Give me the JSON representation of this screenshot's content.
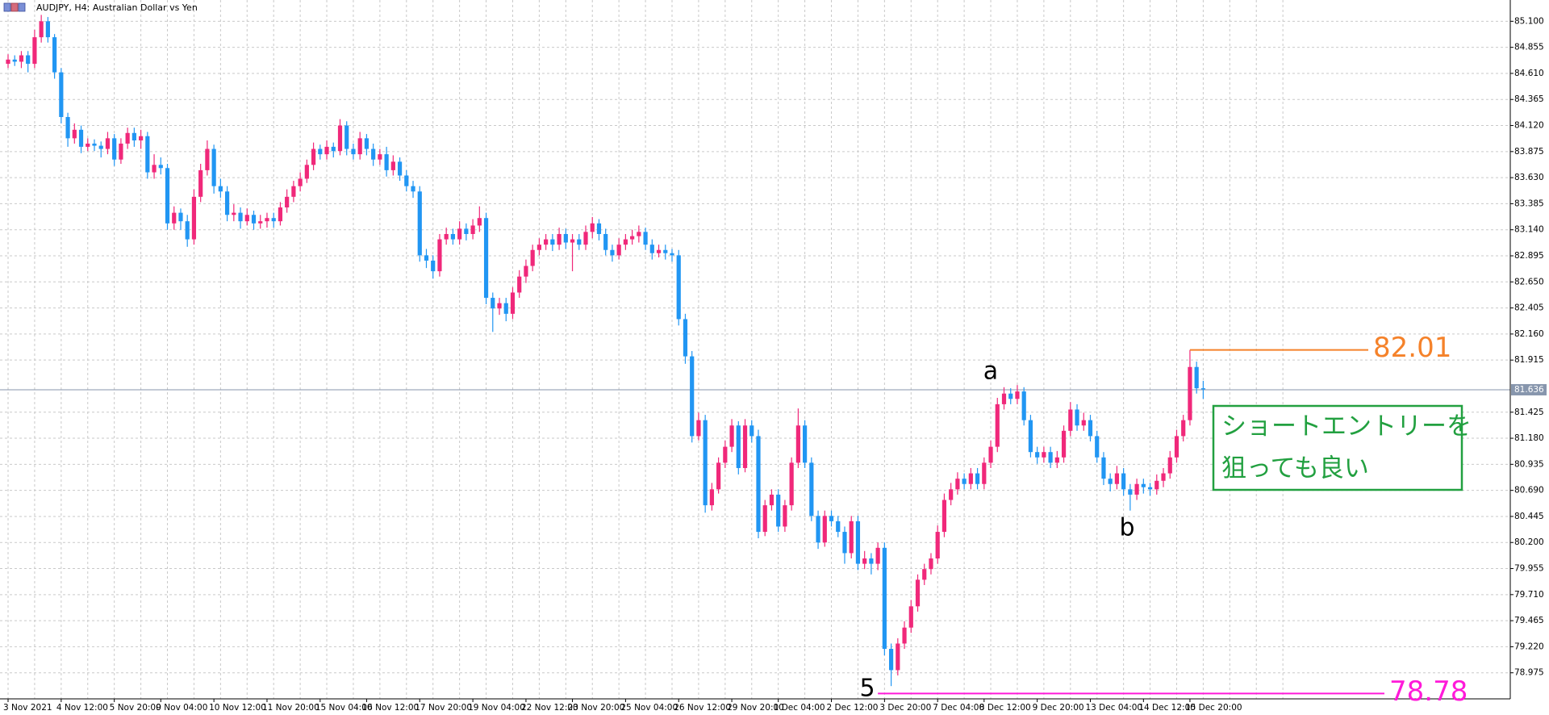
{
  "chart_data": {
    "type": "candlestick",
    "title": "AUDJPY, H4:  Australian Dollar vs Yen",
    "up_color": "#f0287a",
    "down_color": "#2196f3",
    "grid": true,
    "ylim": [
      78.73,
      85.3
    ],
    "yticks": [
      {
        "value": 85.1,
        "label": "85.100"
      },
      84.855,
      {
        "value": 84.61,
        "label": "84.610"
      },
      84.365,
      {
        "value": 84.12,
        "label": "84.120"
      },
      83.875,
      {
        "value": 83.63,
        "label": "83.630"
      },
      83.385,
      {
        "value": 83.14,
        "label": "83.140"
      },
      82.895,
      {
        "value": 82.65,
        "label": "82.650"
      },
      82.405,
      {
        "value": 82.16,
        "label": "82.160"
      },
      81.915,
      81.425,
      {
        "value": 81.18,
        "label": "81.180"
      },
      80.935,
      {
        "value": 80.69,
        "label": "80.690"
      },
      80.445,
      {
        "value": 80.2,
        "label": "80.200"
      },
      79.955,
      {
        "value": 79.71,
        "label": "79.710"
      },
      79.465,
      {
        "value": 79.22,
        "label": "79.220"
      },
      78.975
    ],
    "current_price": 81.636,
    "categories": [
      "3 Nov 2021",
      null,
      null,
      null,
      null,
      null,
      null,
      null,
      "4 Nov 12:00",
      null,
      null,
      null,
      null,
      null,
      null,
      null,
      "5 Nov 20:00",
      null,
      null,
      null,
      null,
      null,
      null,
      "9 Nov 04:00",
      null,
      null,
      null,
      null,
      null,
      null,
      null,
      "10 Nov 12:00",
      null,
      null,
      null,
      null,
      null,
      null,
      null,
      "11 Nov 20:00",
      null,
      null,
      null,
      null,
      null,
      null,
      null,
      "15 Nov 04:00",
      null,
      null,
      null,
      null,
      null,
      null,
      "16 Nov 12:00",
      null,
      null,
      null,
      null,
      null,
      null,
      null,
      "17 Nov 20:00",
      null,
      null,
      null,
      null,
      null,
      null,
      null,
      "19 Nov 04:00",
      null,
      null,
      null,
      null,
      null,
      null,
      null,
      "22 Nov 12:00",
      null,
      null,
      null,
      null,
      null,
      null,
      "23 Nov 20:00",
      null,
      null,
      null,
      null,
      null,
      null,
      null,
      "25 Nov 04:00",
      null,
      null,
      null,
      null,
      null,
      null,
      null,
      "26 Nov 12:00",
      null,
      null,
      null,
      null,
      null,
      null,
      null,
      "29 Nov 20:00",
      null,
      null,
      null,
      null,
      null,
      null,
      "1 Dec 04:00",
      null,
      null,
      null,
      null,
      null,
      null,
      null,
      "2 Dec 12:00",
      null,
      null,
      null,
      null,
      null,
      null,
      null,
      "3 Dec 20:00",
      null,
      null,
      null,
      null,
      null,
      null,
      null,
      "7 Dec 04:00",
      null,
      null,
      null,
      null,
      null,
      null,
      "8 Dec 12:00",
      null,
      null,
      null,
      null,
      null,
      null,
      null,
      "9 Dec 20:00",
      null,
      null,
      null,
      null,
      null,
      null,
      null,
      "13 Dec 04:00",
      null,
      null,
      null,
      null,
      null,
      null,
      null,
      "14 Dec 12:00",
      null,
      null,
      null,
      null,
      null,
      null,
      "15 Dec 20:00",
      null,
      null
    ],
    "ohlc": [
      [
        84.7,
        84.79,
        84.66,
        84.74
      ],
      [
        84.74,
        84.78,
        84.68,
        84.72
      ],
      [
        84.72,
        84.82,
        84.66,
        84.78
      ],
      [
        84.78,
        84.82,
        84.62,
        84.7
      ],
      [
        84.7,
        85.02,
        84.66,
        84.95
      ],
      [
        84.95,
        85.16,
        84.9,
        85.1
      ],
      [
        85.1,
        85.14,
        84.9,
        84.95
      ],
      [
        84.95,
        84.98,
        84.56,
        84.62
      ],
      [
        84.62,
        84.66,
        84.14,
        84.2
      ],
      [
        84.2,
        84.24,
        83.92,
        84.0
      ],
      [
        84.0,
        84.14,
        83.95,
        84.08
      ],
      [
        84.08,
        84.12,
        83.86,
        83.92
      ],
      [
        83.92,
        84.0,
        83.88,
        83.95
      ],
      [
        83.95,
        83.99,
        83.88,
        83.93
      ],
      [
        83.93,
        83.97,
        83.82,
        83.9
      ],
      [
        83.9,
        84.06,
        83.85,
        84.0
      ],
      [
        84.0,
        84.04,
        83.74,
        83.8
      ],
      [
        83.8,
        84.0,
        83.76,
        83.95
      ],
      [
        83.95,
        84.1,
        83.9,
        84.05
      ],
      [
        84.05,
        84.1,
        83.92,
        83.98
      ],
      [
        83.98,
        84.08,
        83.9,
        84.02
      ],
      [
        84.02,
        84.06,
        83.62,
        83.68
      ],
      [
        83.68,
        83.85,
        83.62,
        83.75
      ],
      [
        83.75,
        83.82,
        83.66,
        83.72
      ],
      [
        83.72,
        83.76,
        83.14,
        83.2
      ],
      [
        83.2,
        83.36,
        83.14,
        83.3
      ],
      [
        83.3,
        83.34,
        83.14,
        83.22
      ],
      [
        83.22,
        83.28,
        82.98,
        83.05
      ],
      [
        83.05,
        83.52,
        83.0,
        83.45
      ],
      [
        83.45,
        83.76,
        83.4,
        83.7
      ],
      [
        83.7,
        83.98,
        83.65,
        83.9
      ],
      [
        83.9,
        83.94,
        83.48,
        83.55
      ],
      [
        83.55,
        83.62,
        83.44,
        83.5
      ],
      [
        83.5,
        83.55,
        83.22,
        83.28
      ],
      [
        83.28,
        83.38,
        83.22,
        83.3
      ],
      [
        83.3,
        83.35,
        83.15,
        83.22
      ],
      [
        83.22,
        83.34,
        83.18,
        83.28
      ],
      [
        83.28,
        83.32,
        83.14,
        83.2
      ],
      [
        83.2,
        83.28,
        83.15,
        83.22
      ],
      [
        83.22,
        83.3,
        83.16,
        83.25
      ],
      [
        83.25,
        83.3,
        83.16,
        83.22
      ],
      [
        83.22,
        83.4,
        83.18,
        83.35
      ],
      [
        83.35,
        83.52,
        83.3,
        83.45
      ],
      [
        83.45,
        83.6,
        83.4,
        83.55
      ],
      [
        83.55,
        83.68,
        83.5,
        83.62
      ],
      [
        83.62,
        83.8,
        83.58,
        83.75
      ],
      [
        83.75,
        83.96,
        83.7,
        83.9
      ],
      [
        83.9,
        83.94,
        83.8,
        83.85
      ],
      [
        83.85,
        83.98,
        83.8,
        83.92
      ],
      [
        83.92,
        83.96,
        83.82,
        83.88
      ],
      [
        83.88,
        84.18,
        83.84,
        84.12
      ],
      [
        84.12,
        84.16,
        83.84,
        83.9
      ],
      [
        83.9,
        83.95,
        83.8,
        83.85
      ],
      [
        83.85,
        84.06,
        83.8,
        84.0
      ],
      [
        84.0,
        84.04,
        83.84,
        83.9
      ],
      [
        83.9,
        83.95,
        83.74,
        83.8
      ],
      [
        83.8,
        83.9,
        83.75,
        83.85
      ],
      [
        83.85,
        83.92,
        83.64,
        83.7
      ],
      [
        83.7,
        83.84,
        83.65,
        83.78
      ],
      [
        83.78,
        83.82,
        83.6,
        83.65
      ],
      [
        83.65,
        83.7,
        83.5,
        83.55
      ],
      [
        83.55,
        83.6,
        83.44,
        83.5
      ],
      [
        83.5,
        83.55,
        82.84,
        82.9
      ],
      [
        82.9,
        82.96,
        82.78,
        82.85
      ],
      [
        82.85,
        82.9,
        82.68,
        82.75
      ],
      [
        82.75,
        83.1,
        82.7,
        83.05
      ],
      [
        83.05,
        83.16,
        83.0,
        83.1
      ],
      [
        83.1,
        83.15,
        83.0,
        83.05
      ],
      [
        83.05,
        83.22,
        83.0,
        83.15
      ],
      [
        83.15,
        83.2,
        83.04,
        83.1
      ],
      [
        83.1,
        83.24,
        83.05,
        83.18
      ],
      [
        83.18,
        83.36,
        83.12,
        83.25
      ],
      [
        83.25,
        83.3,
        82.44,
        82.5
      ],
      [
        82.5,
        82.55,
        82.18,
        82.4
      ],
      [
        82.4,
        82.5,
        82.34,
        82.45
      ],
      [
        82.45,
        82.5,
        82.28,
        82.35
      ],
      [
        82.35,
        82.6,
        82.3,
        82.55
      ],
      [
        82.55,
        82.76,
        82.5,
        82.7
      ],
      [
        82.7,
        82.86,
        82.64,
        82.8
      ],
      [
        82.8,
        83.0,
        82.75,
        82.95
      ],
      [
        82.95,
        83.06,
        82.9,
        83.0
      ],
      [
        83.0,
        83.1,
        82.95,
        83.05
      ],
      [
        83.05,
        83.1,
        82.94,
        83.0
      ],
      [
        83.0,
        83.16,
        82.95,
        83.1
      ],
      [
        83.1,
        83.15,
        82.96,
        83.02
      ],
      [
        83.02,
        83.1,
        82.75,
        83.05
      ],
      [
        83.05,
        83.1,
        82.95,
        83.0
      ],
      [
        83.0,
        83.18,
        82.95,
        83.12
      ],
      [
        83.12,
        83.26,
        83.06,
        83.2
      ],
      [
        83.2,
        83.24,
        83.04,
        83.1
      ],
      [
        83.1,
        83.15,
        82.9,
        82.95
      ],
      [
        82.95,
        83.0,
        82.84,
        82.9
      ],
      [
        82.9,
        83.06,
        82.86,
        83.0
      ],
      [
        83.0,
        83.1,
        82.95,
        83.05
      ],
      [
        83.05,
        83.14,
        83.0,
        83.08
      ],
      [
        83.08,
        83.18,
        83.02,
        83.12
      ],
      [
        83.12,
        83.16,
        82.95,
        83.0
      ],
      [
        83.0,
        83.05,
        82.86,
        82.92
      ],
      [
        82.92,
        83.0,
        82.88,
        82.95
      ],
      [
        82.95,
        83.0,
        82.86,
        82.92
      ],
      [
        82.92,
        82.96,
        82.84,
        82.9
      ],
      [
        82.9,
        82.95,
        82.24,
        82.3
      ],
      [
        82.3,
        82.35,
        81.88,
        81.95
      ],
      [
        81.95,
        82.0,
        81.14,
        81.2
      ],
      [
        81.2,
        81.42,
        81.16,
        81.35
      ],
      [
        81.35,
        81.4,
        80.48,
        80.55
      ],
      [
        80.55,
        80.76,
        80.5,
        80.7
      ],
      [
        80.7,
        81.0,
        80.66,
        80.95
      ],
      [
        80.95,
        81.16,
        80.9,
        81.1
      ],
      [
        81.1,
        81.36,
        81.05,
        81.3
      ],
      [
        81.3,
        81.34,
        80.84,
        80.9
      ],
      [
        80.9,
        81.36,
        80.86,
        81.3
      ],
      [
        81.3,
        81.35,
        81.14,
        81.2
      ],
      [
        81.2,
        81.26,
        80.24,
        80.3
      ],
      [
        80.3,
        80.6,
        80.26,
        80.55
      ],
      [
        80.55,
        80.7,
        80.5,
        80.65
      ],
      [
        80.65,
        80.7,
        80.3,
        80.35
      ],
      [
        80.35,
        80.6,
        80.3,
        80.55
      ],
      [
        80.55,
        81.0,
        80.5,
        80.95
      ],
      [
        80.95,
        81.46,
        80.9,
        81.3
      ],
      [
        81.3,
        81.35,
        80.9,
        80.95
      ],
      [
        80.95,
        81.0,
        80.4,
        80.45
      ],
      [
        80.45,
        80.5,
        80.14,
        80.2
      ],
      [
        80.2,
        80.5,
        80.16,
        80.45
      ],
      [
        80.45,
        80.5,
        80.35,
        80.4
      ],
      [
        80.4,
        80.45,
        80.25,
        80.3
      ],
      [
        80.3,
        80.35,
        80.0,
        80.1
      ],
      [
        80.1,
        80.45,
        80.05,
        80.4
      ],
      [
        80.4,
        80.45,
        79.94,
        80.0
      ],
      [
        80.0,
        80.12,
        79.95,
        80.05
      ],
      [
        80.05,
        80.1,
        79.9,
        80.0
      ],
      [
        80.0,
        80.2,
        79.94,
        80.15
      ],
      [
        80.15,
        80.2,
        79.14,
        79.2
      ],
      [
        79.2,
        79.25,
        78.85,
        79.0
      ],
      [
        79.0,
        79.3,
        78.95,
        79.25
      ],
      [
        79.25,
        79.46,
        79.2,
        79.4
      ],
      [
        79.4,
        79.66,
        79.35,
        79.6
      ],
      [
        79.6,
        79.9,
        79.55,
        79.85
      ],
      [
        79.85,
        80.0,
        79.8,
        79.95
      ],
      [
        79.95,
        80.1,
        79.9,
        80.05
      ],
      [
        80.05,
        80.36,
        80.0,
        80.3
      ],
      [
        80.3,
        80.66,
        80.25,
        80.6
      ],
      [
        80.6,
        80.76,
        80.55,
        80.7
      ],
      [
        80.7,
        80.86,
        80.65,
        80.8
      ],
      [
        80.8,
        80.85,
        80.7,
        80.75
      ],
      [
        80.75,
        80.9,
        80.7,
        80.85
      ],
      [
        80.85,
        80.9,
        80.7,
        80.75
      ],
      [
        80.75,
        81.0,
        80.7,
        80.95
      ],
      [
        80.95,
        81.16,
        80.9,
        81.1
      ],
      [
        81.1,
        81.56,
        81.05,
        81.5
      ],
      [
        81.5,
        81.66,
        81.45,
        81.6
      ],
      [
        81.6,
        81.65,
        81.5,
        81.55
      ],
      [
        81.55,
        81.68,
        81.5,
        81.62
      ],
      [
        81.62,
        81.66,
        81.3,
        81.35
      ],
      [
        81.35,
        81.4,
        81.0,
        81.05
      ],
      [
        81.05,
        81.1,
        80.94,
        81.0
      ],
      [
        81.0,
        81.1,
        80.95,
        81.05
      ],
      [
        81.05,
        81.1,
        80.9,
        80.95
      ],
      [
        80.95,
        81.06,
        80.9,
        81.0
      ],
      [
        81.0,
        81.3,
        80.95,
        81.25
      ],
      [
        81.25,
        81.52,
        81.2,
        81.45
      ],
      [
        81.45,
        81.5,
        81.25,
        81.3
      ],
      [
        81.3,
        81.42,
        81.25,
        81.35
      ],
      [
        81.35,
        81.4,
        81.15,
        81.2
      ],
      [
        81.2,
        81.25,
        80.95,
        81.0
      ],
      [
        81.0,
        81.05,
        80.74,
        80.8
      ],
      [
        80.8,
        80.85,
        80.68,
        80.75
      ],
      [
        80.75,
        80.92,
        80.7,
        80.85
      ],
      [
        80.85,
        80.9,
        80.64,
        80.7
      ],
      [
        80.7,
        80.75,
        80.5,
        80.65
      ],
      [
        80.65,
        80.8,
        80.6,
        80.75
      ],
      [
        80.75,
        80.8,
        80.66,
        80.72
      ],
      [
        80.72,
        80.76,
        80.64,
        80.7
      ],
      [
        80.7,
        80.84,
        80.65,
        80.78
      ],
      [
        80.78,
        80.9,
        80.72,
        80.85
      ],
      [
        80.85,
        81.06,
        80.8,
        81.0
      ],
      [
        81.0,
        81.26,
        80.95,
        81.2
      ],
      [
        81.2,
        81.4,
        81.15,
        81.35
      ],
      [
        81.35,
        82.01,
        81.3,
        81.85
      ],
      [
        81.85,
        81.9,
        81.6,
        81.65
      ],
      [
        81.65,
        81.72,
        81.55,
        81.64
      ]
    ],
    "levels": [
      {
        "value": 82.01,
        "color": "#f5822a"
      },
      {
        "value": 78.78,
        "color": "#ff1ad9"
      }
    ],
    "wave_labels": [
      "a",
      "b",
      "5"
    ],
    "note_lines": [
      "ショートエントリーを",
      "狙っても良い"
    ],
    "note_color": "#22a040"
  }
}
